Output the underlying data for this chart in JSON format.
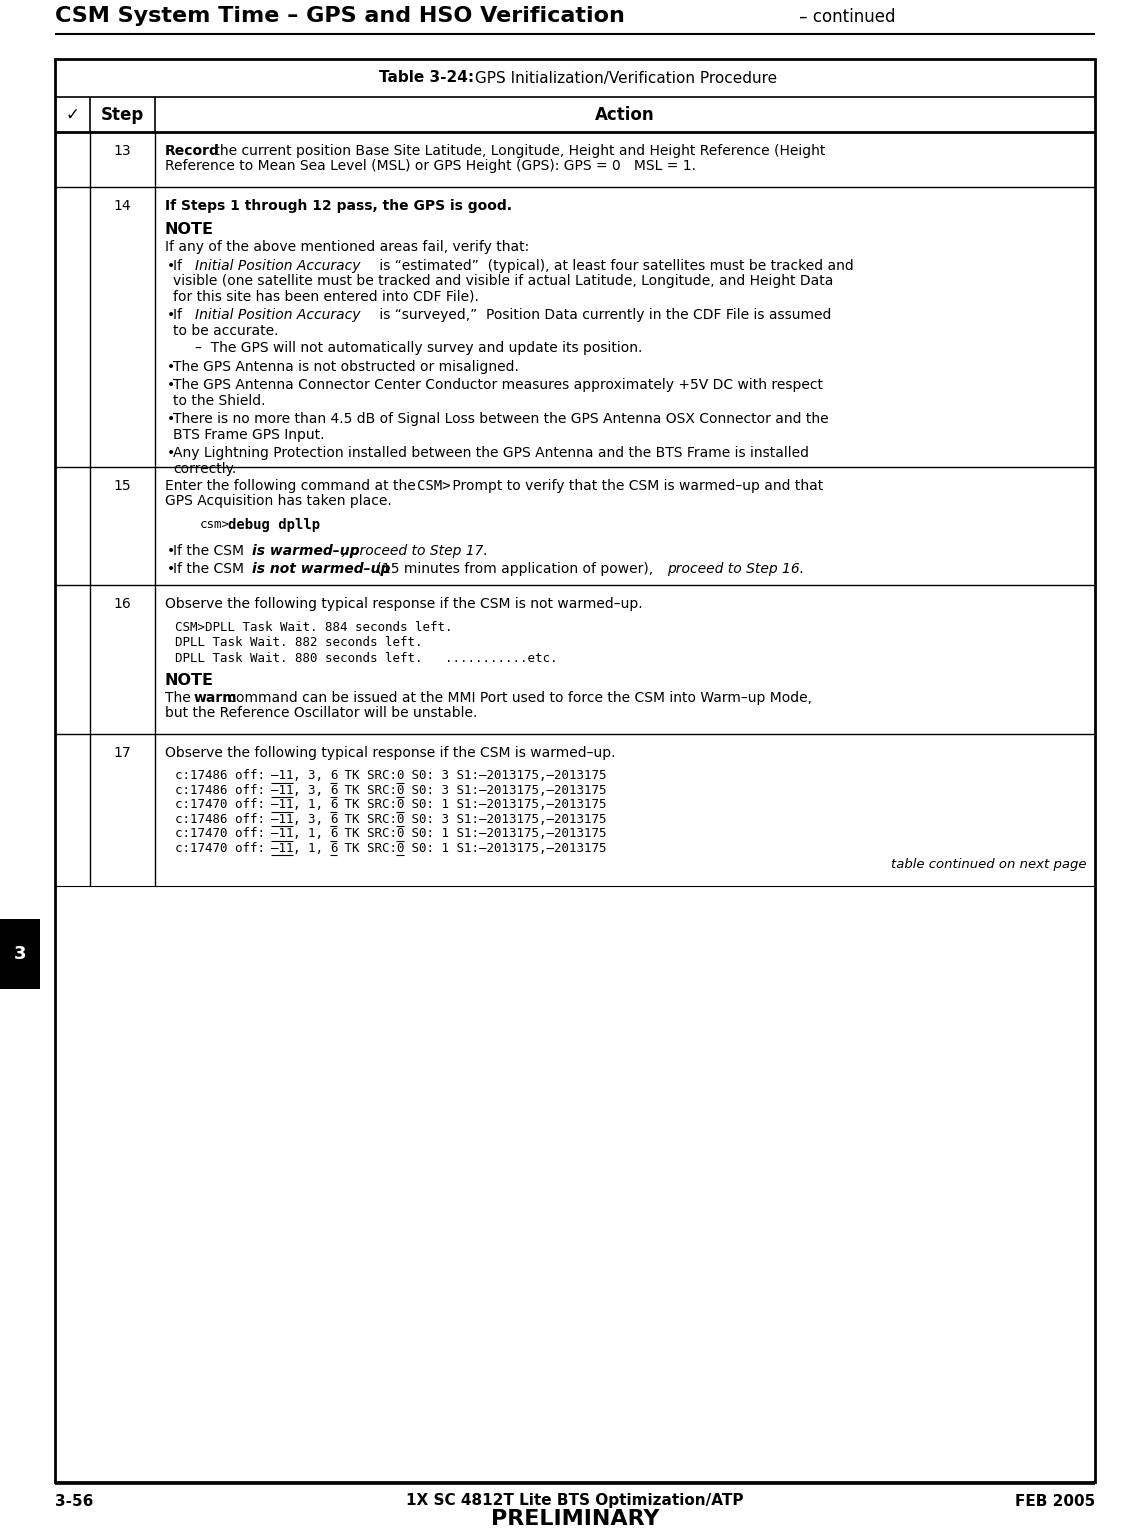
{
  "page_title_bold": "CSM System Time – GPS and HSO Verification",
  "page_title_normal": " – continued",
  "table_caption_bold": "Table 3-24:",
  "table_caption_normal": " GPS Initialization/Verification Procedure",
  "header_check": "✓",
  "header_step": "Step",
  "header_action": "Action",
  "footer_left": "3-56",
  "footer_center": "1X SC 4812T Lite BTS Optimization/ATP",
  "footer_right": "FEB 2005",
  "footer_prelim": "PRELIMINARY",
  "chapter_tab": "3",
  "bg_color": "#ffffff",
  "table_border_lw": 1.5,
  "header_border_lw": 2.0
}
